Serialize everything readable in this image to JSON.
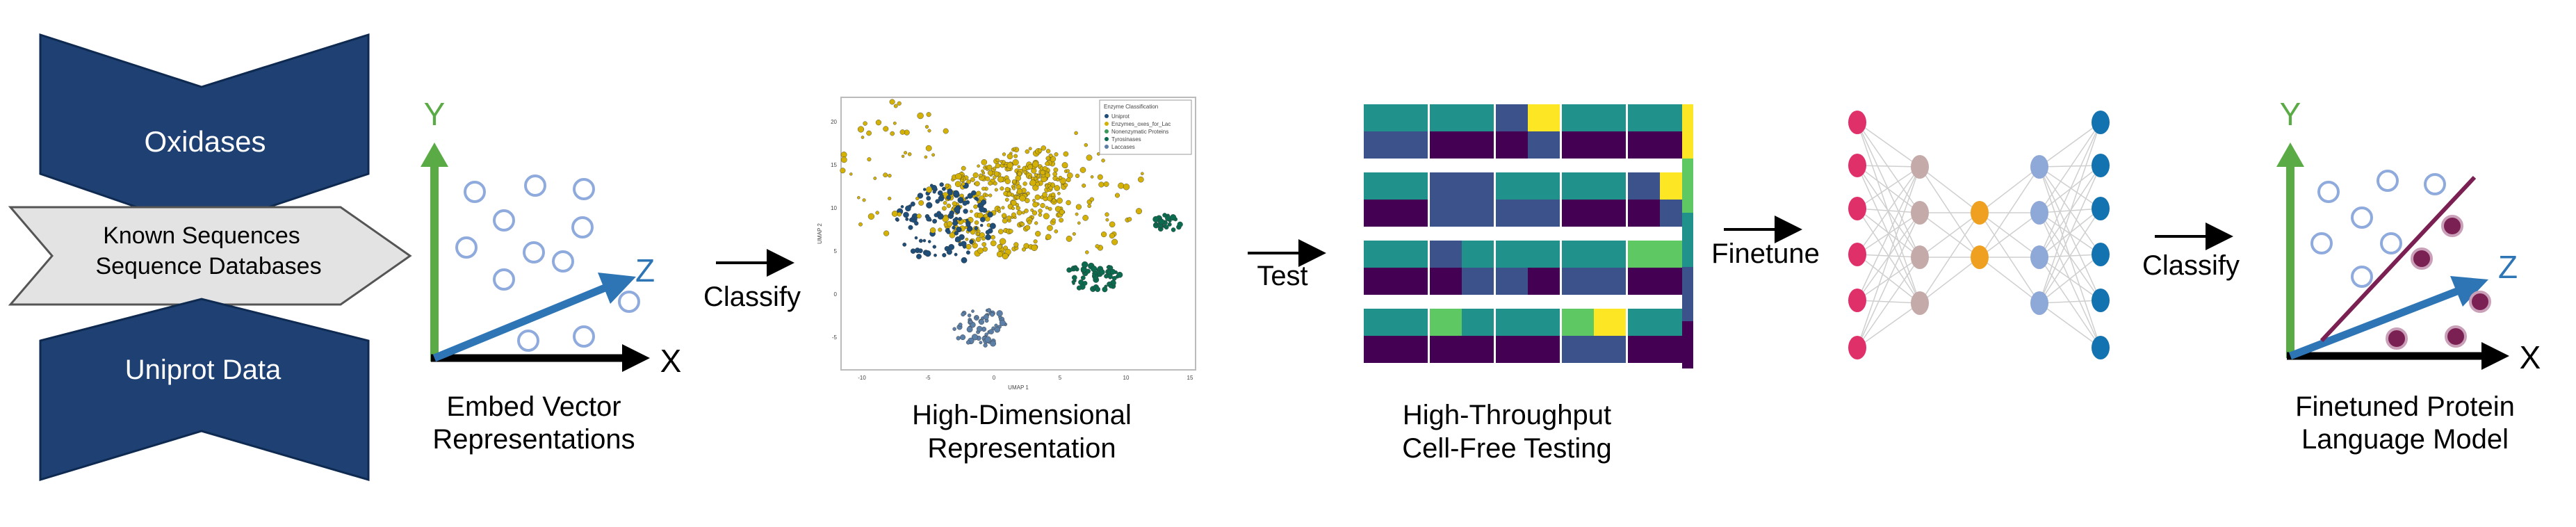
{
  "inputs": {
    "top_label": "Oxidases",
    "middle_lines": [
      "Known Sequences",
      "Sequence Databases"
    ],
    "bottom_label": "Uniprot Data"
  },
  "embed": {
    "axis_y": "Y",
    "axis_x": "X",
    "axis_z": "Z",
    "caption": [
      "Embed Vector",
      "Representations"
    ]
  },
  "arrow_labels": {
    "classify_1": "Classify",
    "test": "Test",
    "finetune": "Finetune",
    "classify_2": "Classify"
  },
  "umap": {
    "caption": [
      "High-Dimensional",
      "Representation"
    ],
    "x_axis_label": "UMAP 1",
    "y_axis_label": "UMAP 2",
    "x_ticks": [
      "-10",
      "-5",
      "0",
      "5",
      "10",
      "15"
    ],
    "y_ticks": [
      "20",
      "15",
      "10",
      "5",
      "0",
      "-5"
    ],
    "legend_title": "Enzyme Classification",
    "legend_items": [
      {
        "label": "Uniprot",
        "color": "#1f4e79"
      },
      {
        "label": "Enzymes_oxes_for_Lac",
        "color": "#d4b106"
      },
      {
        "label": "Nonenzymatic Proteins",
        "color": "#3a9a5b"
      },
      {
        "label": "Tyrosinases",
        "color": "#0b6b4f"
      },
      {
        "label": "Laccases",
        "color": "#5b7fa6"
      }
    ]
  },
  "heatmaps": {
    "caption": [
      "High-Throughput",
      "Cell-Free Testing"
    ],
    "colormap": [
      "#440154",
      "#3b528b",
      "#21918c",
      "#5ec962",
      "#fde725"
    ]
  },
  "model": {
    "caption": [
      "Finetuned Protein",
      "Language Model"
    ],
    "axis_y": "Y",
    "axis_x": "X",
    "axis_z": "Z"
  },
  "colors": {
    "navy": "#1f4073",
    "gray_arrow": "#e3e3e3",
    "y_axis": "#5aab45",
    "z_axis": "#2e75b6",
    "point_outline": "#8faadc",
    "purple": "#7b2052"
  }
}
